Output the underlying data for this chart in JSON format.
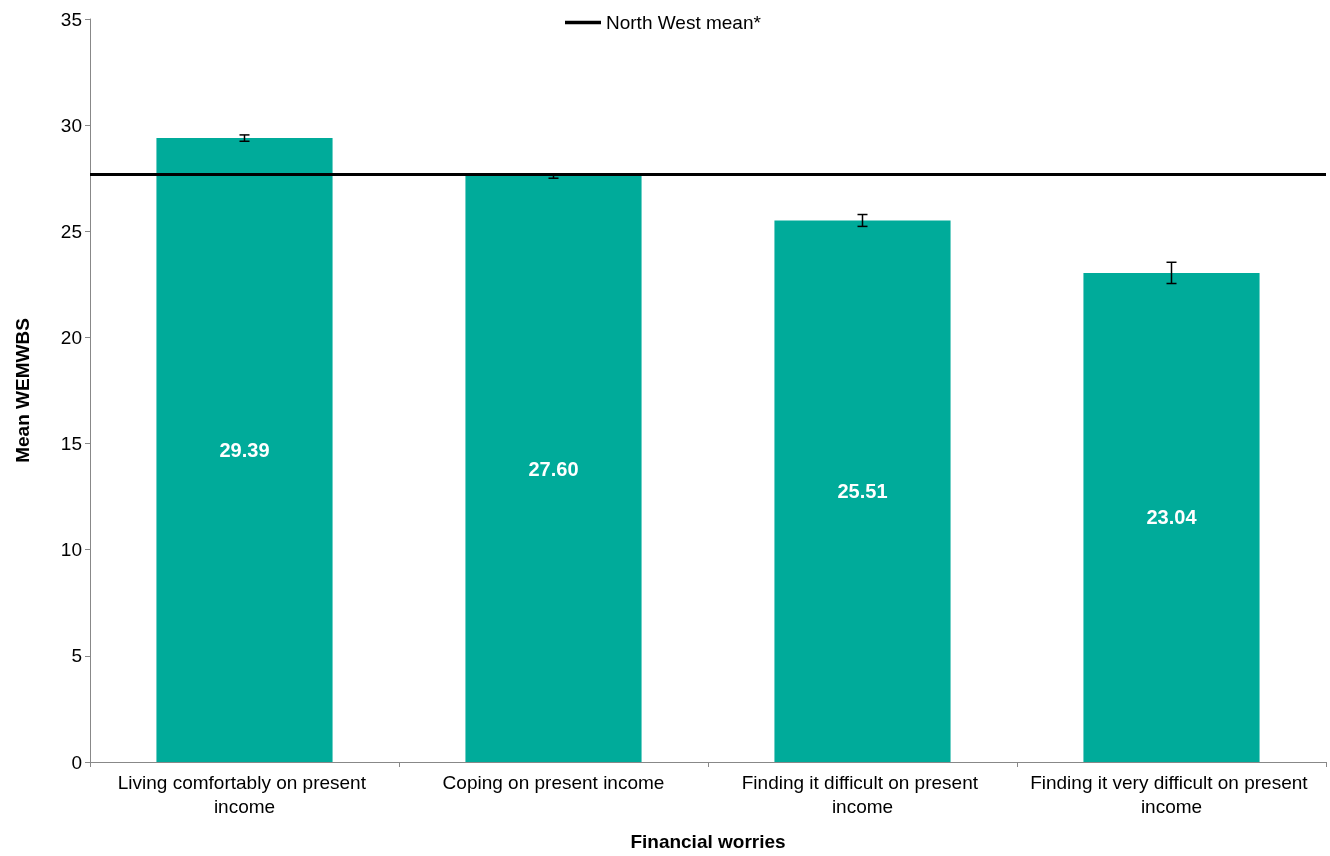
{
  "chart_data": {
    "type": "bar",
    "xlabel": "Financial worries",
    "ylabel": "Mean WEMWBS",
    "categories": [
      "Living comfortably on present income",
      "Coping on present income",
      "Finding it difficult on present income",
      "Finding it very difficult on present income"
    ],
    "values": [
      29.39,
      27.6,
      25.51,
      23.04
    ],
    "value_labels": [
      "29.39",
      "27.60",
      "25.51",
      "23.04"
    ],
    "errors": [
      0.15,
      0.1,
      0.28,
      0.5
    ],
    "color": "#00ab9a",
    "ylim": [
      0,
      35
    ],
    "yticks": [
      0,
      5,
      10,
      15,
      20,
      25,
      30,
      35
    ],
    "grid": false,
    "legend": "top",
    "ref_lines": [
      {
        "axis": "y",
        "value": 27.7,
        "label": "North West mean*",
        "color": "#000000",
        "line_style": "solid"
      }
    ]
  }
}
